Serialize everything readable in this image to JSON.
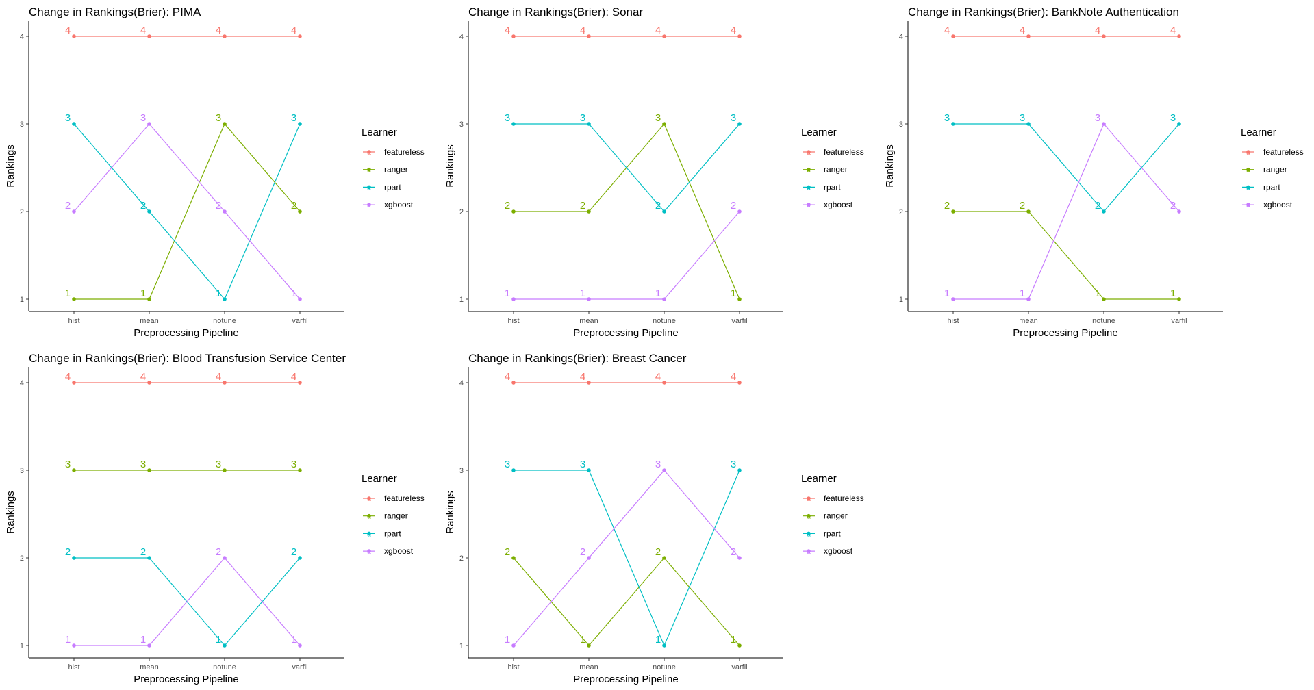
{
  "colors": {
    "featureless": "#F8766D",
    "ranger": "#7CAE00",
    "rpart": "#00BFC4",
    "xgboost": "#C77CFF",
    "axis": "#000000",
    "tick_label": "#4D4D4D"
  },
  "chart_data": [
    {
      "type": "line",
      "title": "Change in Rankings(Brier): PIMA",
      "xlabel": "Preprocessing Pipeline",
      "ylabel": "Rankings",
      "categories": [
        "hist",
        "mean",
        "notune",
        "varfil"
      ],
      "ylim": [
        1,
        4
      ],
      "yticks": [
        1,
        2,
        3,
        4
      ],
      "legend_title": "Learner",
      "legend_position": "right",
      "grid": false,
      "series": [
        {
          "name": "featureless",
          "values": [
            4,
            4,
            4,
            4
          ]
        },
        {
          "name": "ranger",
          "values": [
            1,
            1,
            3,
            2
          ]
        },
        {
          "name": "rpart",
          "values": [
            3,
            2,
            1,
            3
          ]
        },
        {
          "name": "xgboost",
          "values": [
            2,
            3,
            2,
            1
          ]
        }
      ]
    },
    {
      "type": "line",
      "title": "Change in Rankings(Brier): Sonar",
      "xlabel": "Preprocessing Pipeline",
      "ylabel": "Rankings",
      "categories": [
        "hist",
        "mean",
        "notune",
        "varfil"
      ],
      "ylim": [
        1,
        4
      ],
      "yticks": [
        1,
        2,
        3,
        4
      ],
      "legend_title": "Learner",
      "legend_position": "right",
      "grid": false,
      "series": [
        {
          "name": "featureless",
          "values": [
            4,
            4,
            4,
            4
          ]
        },
        {
          "name": "ranger",
          "values": [
            2,
            2,
            3,
            1
          ]
        },
        {
          "name": "rpart",
          "values": [
            3,
            3,
            2,
            3
          ]
        },
        {
          "name": "xgboost",
          "values": [
            1,
            1,
            1,
            2
          ]
        }
      ]
    },
    {
      "type": "line",
      "title": "Change in Rankings(Brier): BankNote Authentication",
      "xlabel": "Preprocessing Pipeline",
      "ylabel": "Rankings",
      "categories": [
        "hist",
        "mean",
        "notune",
        "varfil"
      ],
      "ylim": [
        1,
        4
      ],
      "yticks": [
        1,
        2,
        3,
        4
      ],
      "legend_title": "Learner",
      "legend_position": "right",
      "grid": false,
      "series": [
        {
          "name": "featureless",
          "values": [
            4,
            4,
            4,
            4
          ]
        },
        {
          "name": "ranger",
          "values": [
            2,
            2,
            1,
            1
          ]
        },
        {
          "name": "rpart",
          "values": [
            3,
            3,
            2,
            3
          ]
        },
        {
          "name": "xgboost",
          "values": [
            1,
            1,
            3,
            2
          ]
        }
      ]
    },
    {
      "type": "line",
      "title": "Change in Rankings(Brier): Blood Transfusion Service Center",
      "xlabel": "Preprocessing Pipeline",
      "ylabel": "Rankings",
      "categories": [
        "hist",
        "mean",
        "notune",
        "varfil"
      ],
      "ylim": [
        1,
        4
      ],
      "yticks": [
        1,
        2,
        3,
        4
      ],
      "legend_title": "Learner",
      "legend_position": "right",
      "grid": false,
      "series": [
        {
          "name": "featureless",
          "values": [
            4,
            4,
            4,
            4
          ]
        },
        {
          "name": "ranger",
          "values": [
            3,
            3,
            3,
            3
          ]
        },
        {
          "name": "rpart",
          "values": [
            2,
            2,
            1,
            2
          ]
        },
        {
          "name": "xgboost",
          "values": [
            1,
            1,
            2,
            1
          ]
        }
      ]
    },
    {
      "type": "line",
      "title": "Change in Rankings(Brier): Breast Cancer",
      "xlabel": "Preprocessing Pipeline",
      "ylabel": "Rankings",
      "categories": [
        "hist",
        "mean",
        "notune",
        "varfil"
      ],
      "ylim": [
        1,
        4
      ],
      "yticks": [
        1,
        2,
        3,
        4
      ],
      "legend_title": "Learner",
      "legend_position": "right",
      "grid": false,
      "series": [
        {
          "name": "featureless",
          "values": [
            4,
            4,
            4,
            4
          ]
        },
        {
          "name": "ranger",
          "values": [
            2,
            1,
            2,
            1
          ]
        },
        {
          "name": "rpart",
          "values": [
            3,
            3,
            1,
            3
          ]
        },
        {
          "name": "xgboost",
          "values": [
            1,
            2,
            3,
            2
          ]
        }
      ]
    }
  ]
}
